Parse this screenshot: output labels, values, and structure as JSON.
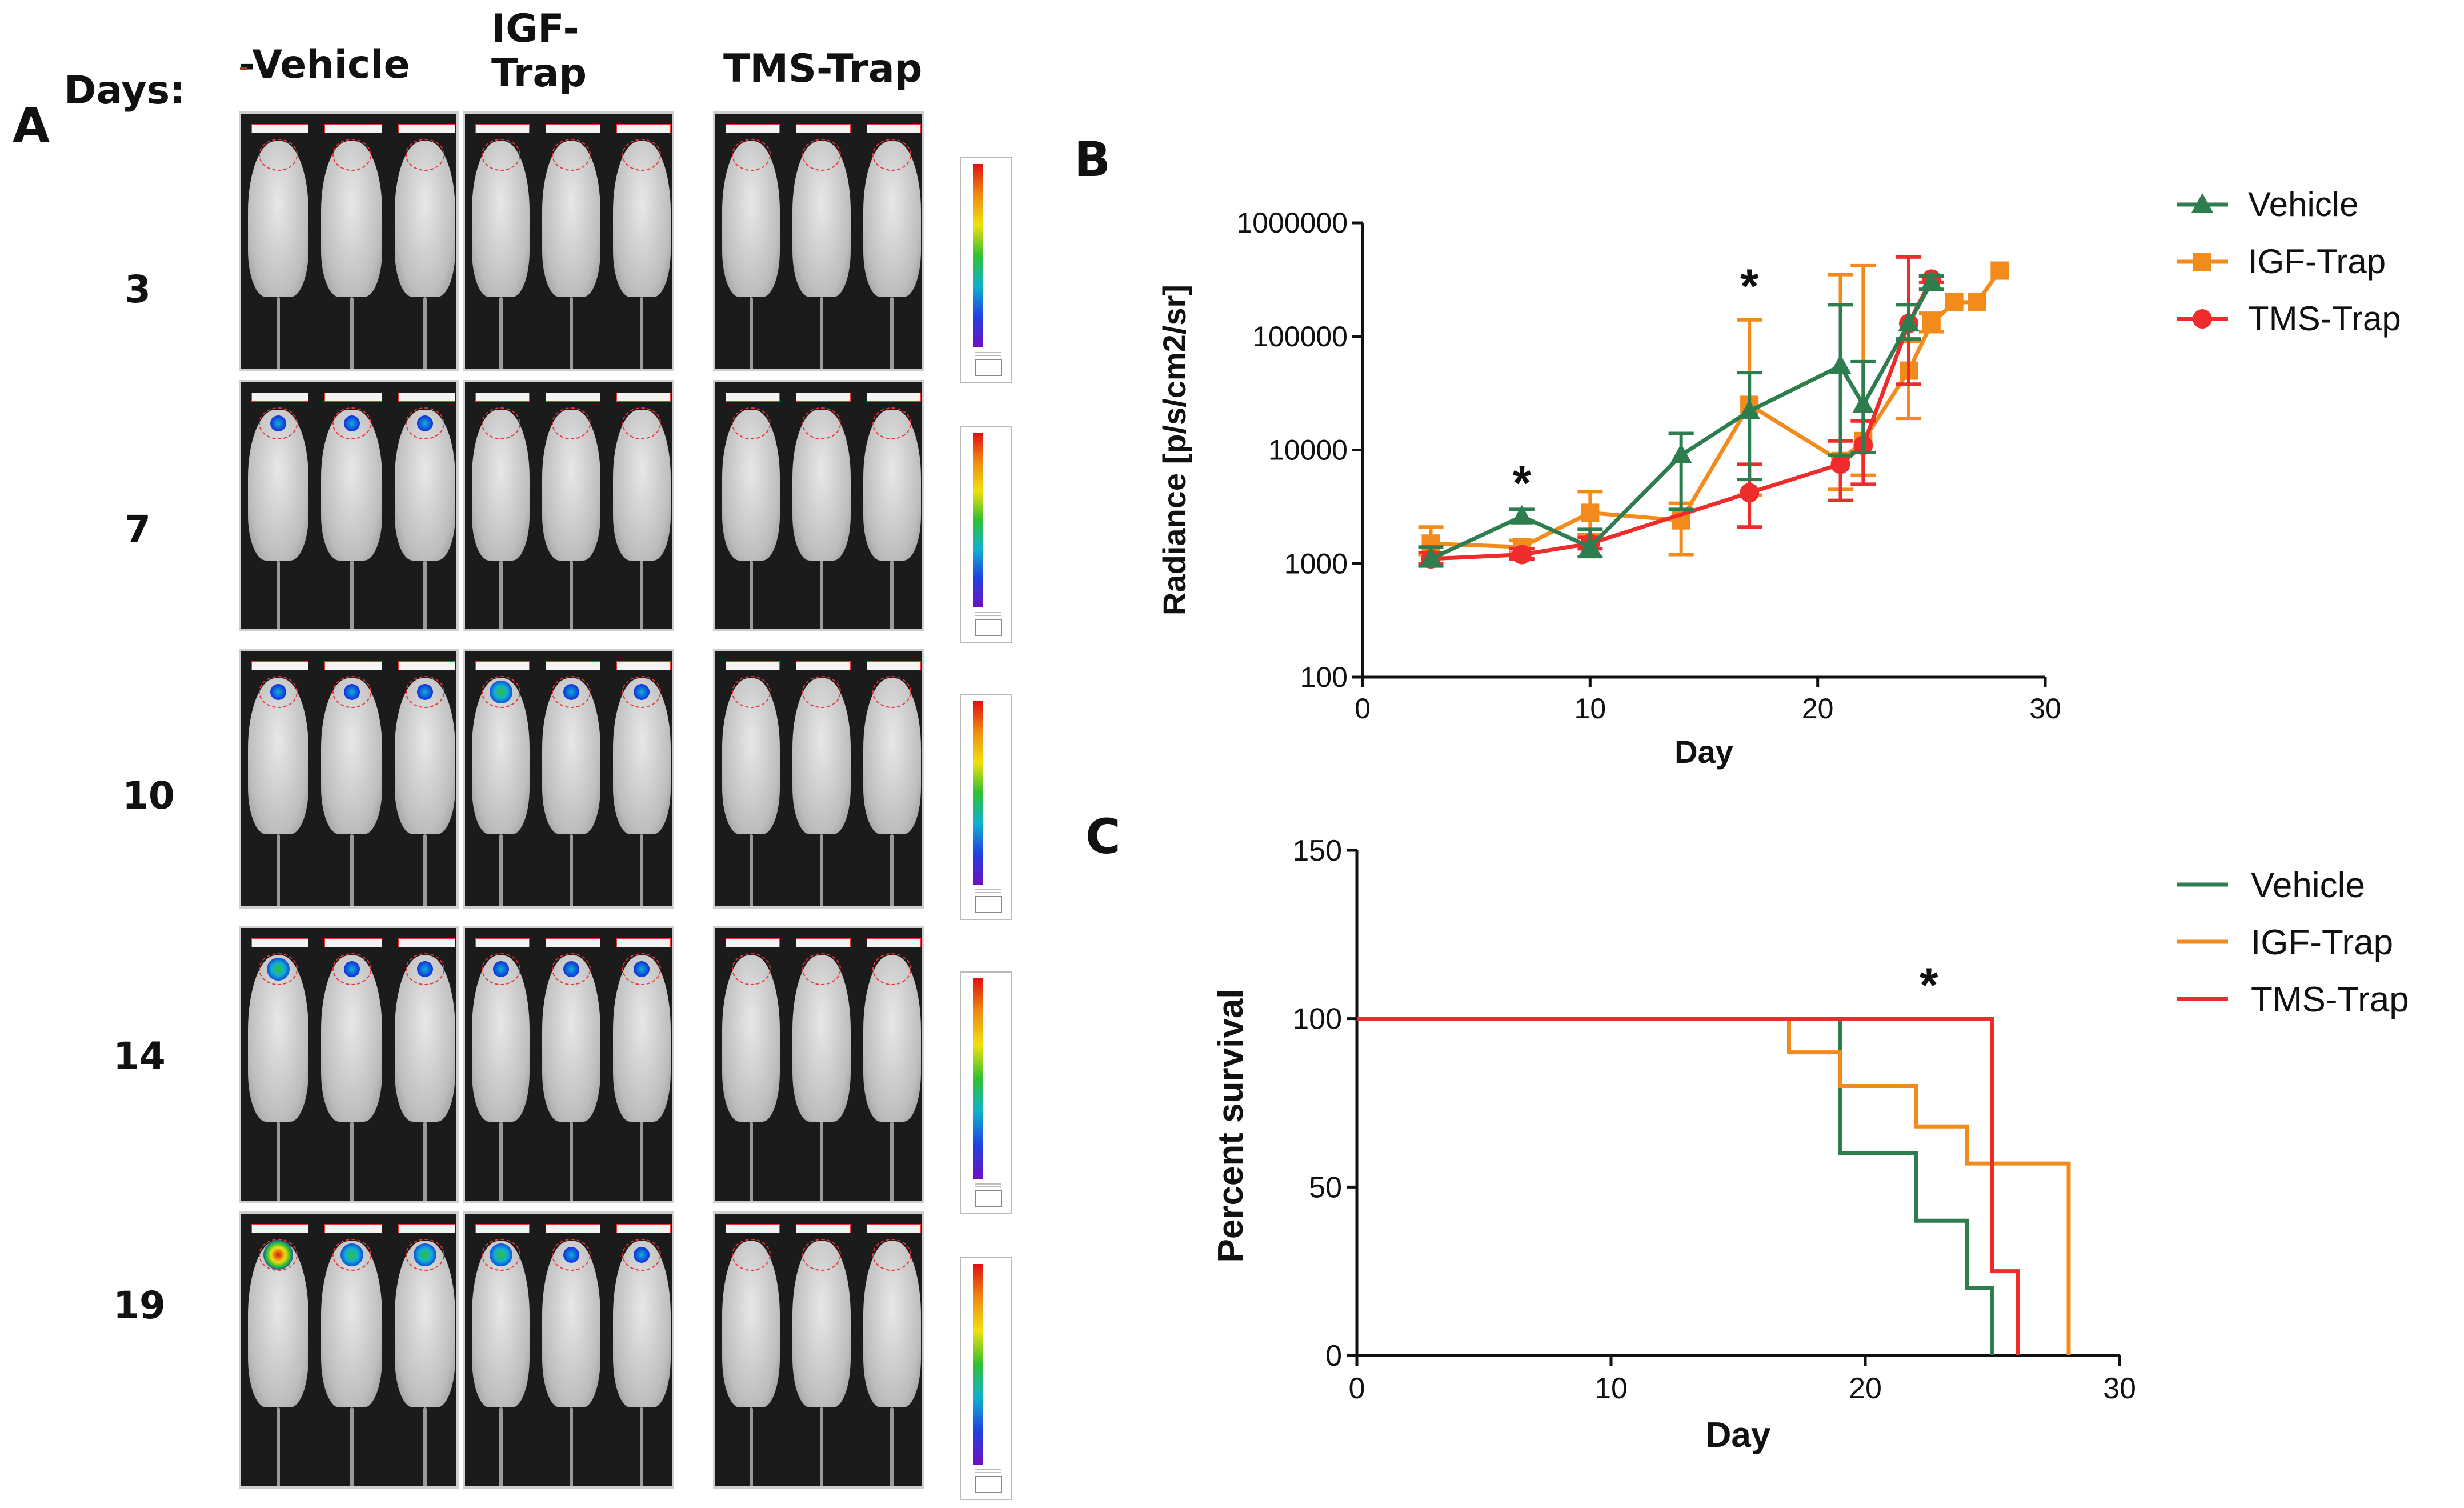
{
  "panel_a": {
    "letter": "A",
    "days_header": "Days:",
    "groups": [
      {
        "name": "-Vehicle"
      },
      {
        "name": "IGF-Trap"
      },
      {
        "name": "TMS-Trap"
      }
    ],
    "days": [
      "3",
      "7",
      "10",
      "14",
      "19"
    ]
  },
  "panel_b": {
    "letter": "B",
    "annotations": [
      "*",
      "*"
    ]
  },
  "panel_c": {
    "letter": "C",
    "annotations": [
      "*"
    ]
  },
  "colors": {
    "vehicle": "#2e7d4f",
    "igf_trap": "#f28a1c",
    "tms_trap": "#ee2c2c",
    "axis": "#111111"
  },
  "chart_data": [
    {
      "type": "line",
      "panel": "B",
      "title": "",
      "xlabel": "Day",
      "ylabel": "Radiance [p/s/cm2/sr]",
      "xlim": [
        0,
        30
      ],
      "ylim": [
        100,
        1000000
      ],
      "yscale": "log",
      "xticks": [
        "0",
        "10",
        "20",
        "30"
      ],
      "yticks": [
        "100",
        "1000",
        "10000",
        "100000",
        "1000000"
      ],
      "legend": [
        "Vehicle",
        "IGF-Trap",
        "TMS-Trap"
      ],
      "legend_position": "top-right",
      "series": [
        {
          "name": "Vehicle",
          "marker": "triangle",
          "x": [
            3,
            7,
            10,
            14,
            17,
            21,
            22,
            24,
            25
          ],
          "y": [
            1100,
            2600,
            1400,
            9000,
            22000,
            55000,
            25000,
            130000,
            300000
          ],
          "err_hi": [
            1400,
            3000,
            2000,
            14000,
            48000,
            190000,
            60000,
            190000,
            340000
          ],
          "err_lo": [
            950,
            2300,
            1150,
            3000,
            5500,
            9000,
            9500,
            95000,
            260000
          ]
        },
        {
          "name": "IGF-Trap",
          "marker": "square",
          "x": [
            3,
            7,
            10,
            14,
            17,
            21,
            22,
            24,
            25,
            26,
            27,
            28
          ],
          "y": [
            1500,
            1400,
            2800,
            2400,
            25000,
            8000,
            12000,
            50000,
            130000,
            200000,
            200000,
            380000
          ],
          "err_hi": [
            2100,
            1600,
            4300,
            3400,
            140000,
            350000,
            420000,
            90000,
            160000,
            200000,
            200000,
            380000
          ],
          "err_lo": [
            1200,
            1250,
            1800,
            1200,
            4000,
            4500,
            6000,
            19000,
            110000,
            200000,
            200000,
            380000
          ]
        },
        {
          "name": "TMS-Trap",
          "marker": "circle",
          "x": [
            3,
            7,
            10,
            17,
            21,
            22,
            24,
            25
          ],
          "y": [
            1100,
            1200,
            1500,
            4200,
            7500,
            11000,
            130000,
            320000
          ],
          "err_hi": [
            1250,
            1350,
            1700,
            7500,
            12000,
            18000,
            500000,
            340000
          ],
          "err_lo": [
            1000,
            1100,
            1350,
            2100,
            3600,
            5000,
            38000,
            300000
          ]
        }
      ],
      "annotations": [
        {
          "text": "*",
          "x": 7
        },
        {
          "text": "*",
          "x": 17
        }
      ]
    },
    {
      "type": "line",
      "panel": "C",
      "title": "",
      "xlabel": "Day",
      "ylabel": "Percent survival",
      "xlim": [
        0,
        30
      ],
      "ylim": [
        0,
        150
      ],
      "xticks": [
        "0",
        "10",
        "20",
        "30"
      ],
      "yticks": [
        "0",
        "50",
        "100",
        "150"
      ],
      "legend": [
        "Vehicle",
        "IGF-Trap",
        "TMS-Trap"
      ],
      "legend_position": "top-right",
      "series": [
        {
          "name": "Vehicle",
          "step": true,
          "x": [
            0,
            19,
            19,
            22,
            22,
            24,
            24,
            25,
            25
          ],
          "y": [
            100,
            100,
            60,
            60,
            40,
            40,
            20,
            20,
            0
          ]
        },
        {
          "name": "IGF-Trap",
          "step": true,
          "x": [
            0,
            17,
            17,
            19,
            19,
            22,
            22,
            24,
            24,
            28,
            28
          ],
          "y": [
            100,
            100,
            90,
            90,
            80,
            80,
            68,
            68,
            57,
            57,
            0
          ]
        },
        {
          "name": "TMS-Trap",
          "step": true,
          "x": [
            0,
            25,
            25,
            26,
            26
          ],
          "y": [
            100,
            100,
            25,
            25,
            0
          ]
        }
      ],
      "annotations": [
        {
          "text": "*",
          "x": 25
        }
      ]
    }
  ]
}
